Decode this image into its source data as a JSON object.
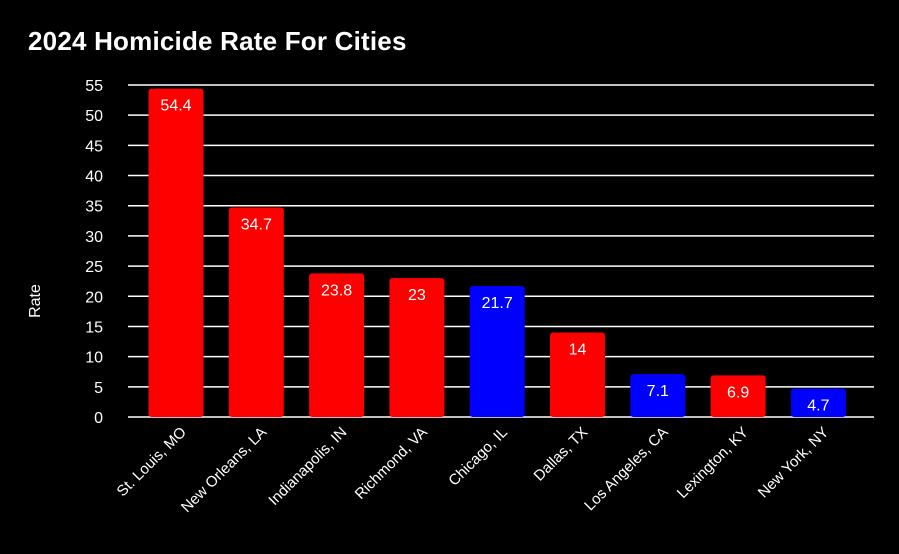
{
  "chart_data": {
    "type": "bar",
    "title": "2024 Homicide Rate For Cities",
    "xlabel": "",
    "ylabel": "Rate",
    "ylim": [
      0,
      55
    ],
    "yticks": [
      0,
      5,
      10,
      15,
      20,
      25,
      30,
      35,
      40,
      45,
      50,
      55
    ],
    "grid": true,
    "categories": [
      "St. Louis, MO",
      "New Orleans, LA",
      "Indianapolis, IN",
      "Richmond, VA",
      "Chicago, IL",
      "Dallas, TX",
      "Los Angeles, CA",
      "Lexington, KY",
      "New York, NY"
    ],
    "values": [
      54.4,
      34.7,
      23.8,
      23,
      21.7,
      14,
      7.1,
      6.9,
      4.7
    ],
    "data_labels": [
      "54.4",
      "34.7",
      "23.8",
      "23",
      "21.7",
      "14",
      "7.1",
      "6.9",
      "4.7"
    ],
    "bar_colors": [
      "#ff0000",
      "#ff0000",
      "#ff0000",
      "#ff0000",
      "#0000ff",
      "#ff0000",
      "#0000ff",
      "#ff0000",
      "#0000ff"
    ],
    "colors": {
      "background": "#000000",
      "grid": "#ffffff",
      "text": "#ffffff"
    }
  }
}
